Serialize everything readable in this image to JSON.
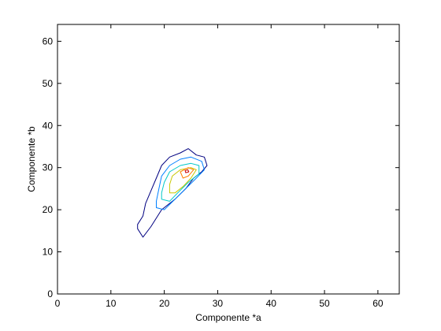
{
  "chart_data": {
    "type": "contour",
    "xlabel": "Componente *a",
    "ylabel": "Componente *b",
    "xlim": [
      0,
      64
    ],
    "ylim": [
      0,
      64
    ],
    "xticks": [
      0,
      10,
      20,
      30,
      40,
      50,
      60
    ],
    "yticks": [
      0,
      10,
      20,
      30,
      40,
      50,
      60
    ],
    "grid": false,
    "contours": [
      {
        "level": 1,
        "color": "#000080",
        "points": [
          [
            15.0,
            15.5
          ],
          [
            16.0,
            13.5
          ],
          [
            17.5,
            16.0
          ],
          [
            19.5,
            20.0
          ],
          [
            22.0,
            22.5
          ],
          [
            24.0,
            25.0
          ],
          [
            25.5,
            27.5
          ],
          [
            27.0,
            29.0
          ],
          [
            28.0,
            30.5
          ],
          [
            27.5,
            32.5
          ],
          [
            26.0,
            33.0
          ],
          [
            24.5,
            34.5
          ],
          [
            23.0,
            33.5
          ],
          [
            21.0,
            32.5
          ],
          [
            19.5,
            30.5
          ],
          [
            18.5,
            27.5
          ],
          [
            17.5,
            24.5
          ],
          [
            16.5,
            21.5
          ],
          [
            16.0,
            18.5
          ],
          [
            15.0,
            16.5
          ]
        ]
      },
      {
        "level": 2,
        "color": "#0080ff",
        "points": [
          [
            18.5,
            20.5
          ],
          [
            20.0,
            20.0
          ],
          [
            22.0,
            22.5
          ],
          [
            24.0,
            25.0
          ],
          [
            26.0,
            27.5
          ],
          [
            27.5,
            29.5
          ],
          [
            27.0,
            31.5
          ],
          [
            25.0,
            32.5
          ],
          [
            23.0,
            32.0
          ],
          [
            21.0,
            30.5
          ],
          [
            19.5,
            28.0
          ],
          [
            19.0,
            25.0
          ],
          [
            18.5,
            22.0
          ]
        ]
      },
      {
        "level": 3,
        "color": "#00c8c8",
        "points": [
          [
            19.5,
            22.5
          ],
          [
            21.0,
            22.0
          ],
          [
            22.5,
            24.0
          ],
          [
            24.5,
            26.5
          ],
          [
            26.5,
            28.5
          ],
          [
            26.5,
            30.5
          ],
          [
            25.0,
            31.0
          ],
          [
            23.0,
            30.5
          ],
          [
            21.0,
            29.0
          ],
          [
            20.0,
            26.5
          ],
          [
            19.5,
            24.0
          ]
        ]
      },
      {
        "level": 4,
        "color": "#c8c800",
        "points": [
          [
            21.0,
            24.0
          ],
          [
            22.0,
            24.0
          ],
          [
            23.5,
            25.5
          ],
          [
            25.0,
            27.5
          ],
          [
            26.0,
            29.5
          ],
          [
            25.0,
            30.0
          ],
          [
            23.0,
            29.5
          ],
          [
            21.5,
            28.0
          ],
          [
            21.0,
            26.0
          ]
        ]
      },
      {
        "level": 5,
        "color": "#ff8000",
        "points": [
          [
            23.5,
            27.5
          ],
          [
            24.5,
            28.0
          ],
          [
            25.5,
            29.5
          ],
          [
            24.5,
            30.0
          ],
          [
            23.0,
            29.0
          ]
        ]
      },
      {
        "level": 6,
        "color": "#cc0000",
        "points": [
          [
            24.0,
            28.8
          ],
          [
            24.6,
            29.0
          ],
          [
            24.4,
            29.5
          ],
          [
            23.9,
            29.3
          ]
        ]
      }
    ]
  }
}
